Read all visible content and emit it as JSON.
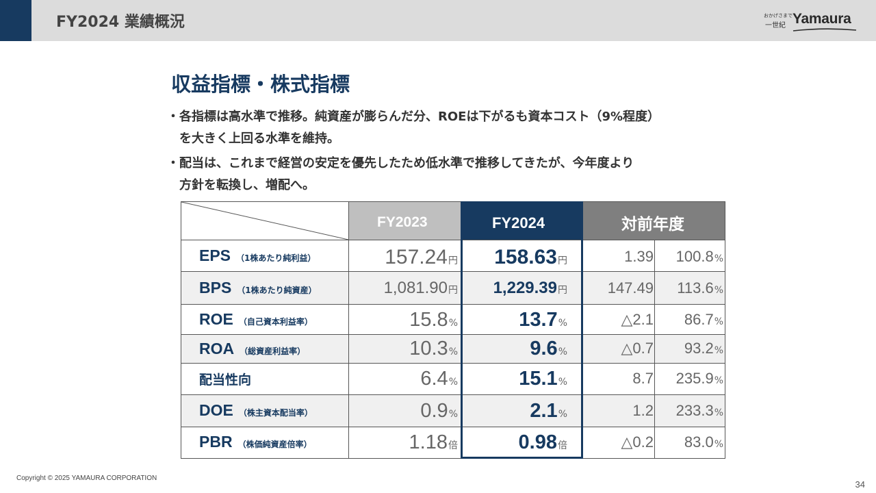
{
  "header": {
    "title": "FY2024 業績概況"
  },
  "logo": {
    "tagline": "おかげさまで",
    "century": "一世紀",
    "brand": "Yamaura"
  },
  "section": {
    "title": "収益指標・株式指標"
  },
  "bullets": [
    {
      "lines": [
        "各指標は高水準で推移。純資産が膨らんだ分、ROEは下がるも資本コスト（9%程度）",
        "を大きく上回る水準を維持。"
      ]
    },
    {
      "lines": [
        "配当は、これまで経営の安定を優先したため低水準で推移してきたが、今年度より",
        "方針を転換し、増配へ。"
      ]
    }
  ],
  "bullet_marker": "・",
  "table": {
    "headers": {
      "fy2023": "FY2023",
      "fy2024": "FY2024",
      "yoy": "対前年度"
    },
    "rows": [
      {
        "abbr": "EPS",
        "note": "（1株あたり純利益）",
        "fy2023": "157.24",
        "fy2023_unit": "円",
        "fy2024": "158.63",
        "fy2024_unit": "円",
        "diff": "1.39",
        "pct": "100.8",
        "pct_unit": "%"
      },
      {
        "abbr": "BPS",
        "note": "（1株あたり純資産）",
        "fy2023": "1,081.90",
        "fy2023_unit": "円",
        "fy2024": "1,229.39",
        "fy2024_unit": "円",
        "diff": "147.49",
        "pct": "113.6",
        "pct_unit": "%"
      },
      {
        "abbr": "ROE",
        "note": "（自己資本利益率）",
        "fy2023": "15.8",
        "fy2023_unit": "%",
        "fy2024": "13.7",
        "fy2024_unit": "%",
        "diff": "△2.1",
        "pct": "86.7",
        "pct_unit": "%"
      },
      {
        "abbr": "ROA",
        "note": "（総資産利益率）",
        "fy2023": "10.3",
        "fy2023_unit": "%",
        "fy2024": "9.6",
        "fy2024_unit": "%",
        "diff": "△0.7",
        "pct": "93.2",
        "pct_unit": "%"
      },
      {
        "abbr": "配当性向",
        "note": "",
        "fy2023": "6.4",
        "fy2023_unit": "%",
        "fy2024": "15.1",
        "fy2024_unit": "%",
        "diff": "8.7",
        "pct": "235.9",
        "pct_unit": "%"
      },
      {
        "abbr": "DOE",
        "note": "（株主資本配当率）",
        "fy2023": "0.9",
        "fy2023_unit": "%",
        "fy2024": "2.1",
        "fy2024_unit": "%",
        "diff": "1.2",
        "pct": "233.3",
        "pct_unit": "%"
      },
      {
        "abbr": "PBR",
        "note": "（株価純資産倍率）",
        "fy2023": "1.18",
        "fy2023_unit": "倍",
        "fy2024": "0.98",
        "fy2024_unit": "倍",
        "diff": "△0.2",
        "pct": "83.0",
        "pct_unit": "%"
      }
    ]
  },
  "footer": {
    "copyright": "Copyright © 2025 YAMAURA CORPORATION",
    "page": "34"
  },
  "colors": {
    "accent": "#173a60",
    "header_bg": "#dcdcdc",
    "fy2023_header": "#bfbfbf",
    "yoy_header": "#7f7f7f",
    "row_alt": "#f0f0f0"
  }
}
